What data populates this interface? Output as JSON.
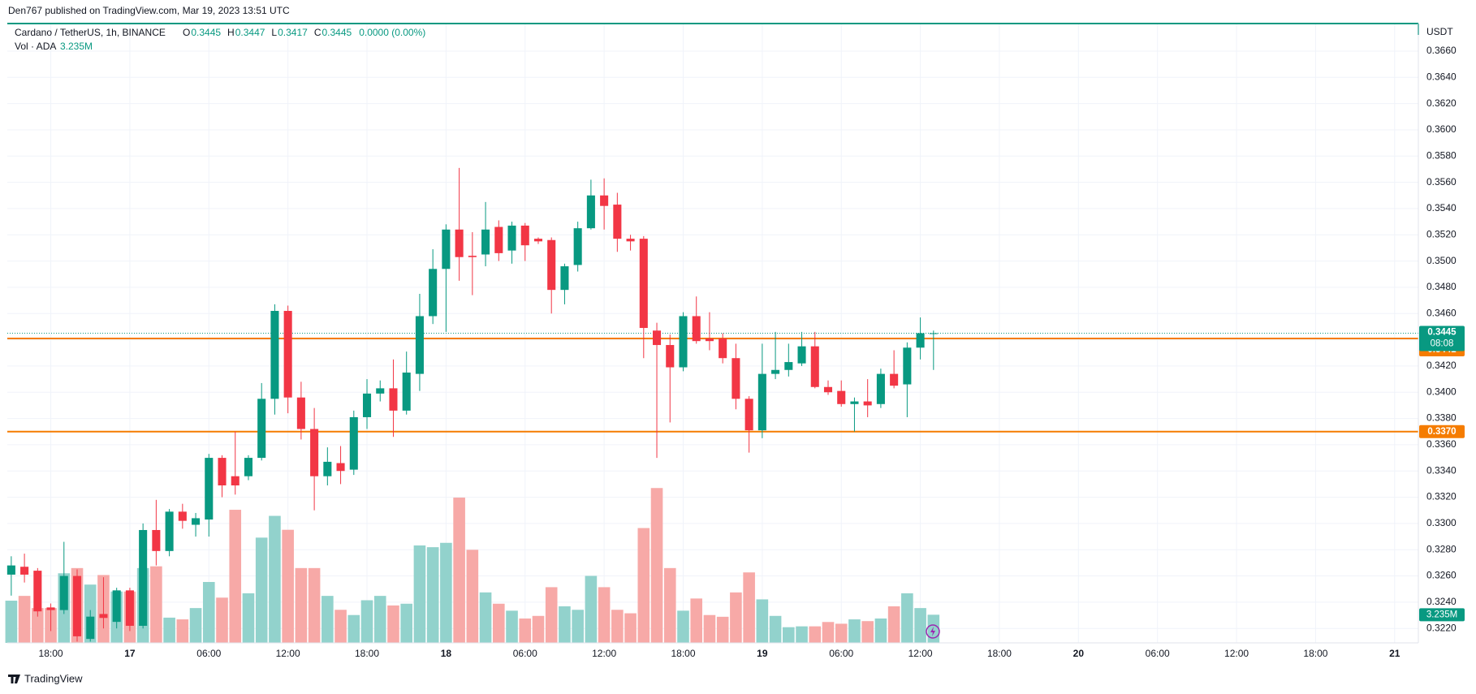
{
  "header": {
    "published": "Den767 published on TradingView.com, Mar 19, 2023 13:51 UTC",
    "brand": "TradingView"
  },
  "chart_data": {
    "type": "candlestick",
    "symbol": "Cardano / TetherUS, 1h, BINANCE",
    "ohlc_legend": [
      {
        "key": "O",
        "value": 0.3445
      },
      {
        "key": "H",
        "value": 0.3447
      },
      {
        "key": "L",
        "value": 0.3417
      },
      {
        "key": "C",
        "value": 0.3445
      },
      {
        "key": "",
        "value": "0.0000 (0.00%)"
      }
    ],
    "volume_legend": {
      "name": "Vol · ADA",
      "value": "3.235M"
    },
    "unit": "USDT",
    "up_color": "#089981",
    "down_color": "#f23645",
    "volume_up_color": "#92d2cc",
    "volume_down_color": "#f7a9a7",
    "grid": true,
    "open": [
      0.3261,
      0.3267,
      0.3264,
      0.3236,
      0.3234,
      0.326,
      0.3212,
      0.3231,
      0.3225,
      0.3249,
      0.3222,
      0.3295,
      0.3279,
      0.3309,
      0.3299,
      0.3303,
      0.335,
      0.3336,
      0.3336,
      0.335,
      0.3395,
      0.3462,
      0.3396,
      0.3372,
      0.3336,
      0.3346,
      0.3341,
      0.3381,
      0.3399,
      0.3403,
      0.3386,
      0.3414,
      0.3458,
      0.3494,
      0.3524,
      0.3504,
      0.3505,
      0.3526,
      0.3508,
      0.3527,
      0.3517,
      0.3516,
      0.3478,
      0.3497,
      0.3525,
      0.355,
      0.3543,
      0.3517,
      0.3517,
      0.3447,
      0.3436,
      0.3419,
      0.3458,
      0.3441,
      0.3441,
      0.3426,
      0.3395,
      0.3371,
      0.3414,
      0.3417,
      0.3422,
      0.3435,
      0.3404,
      0.3401,
      0.3391,
      0.3393,
      0.3391,
      0.3414,
      0.3406,
      0.3434,
      0.3445
    ],
    "high": [
      0.3275,
      0.3277,
      0.3266,
      0.3239,
      0.3286,
      0.3265,
      0.3234,
      0.3259,
      0.3251,
      0.3251,
      0.33,
      0.3318,
      0.3311,
      0.3315,
      0.3308,
      0.3353,
      0.3352,
      0.337,
      0.3352,
      0.3407,
      0.3467,
      0.3466,
      0.3408,
      0.3388,
      0.3358,
      0.3359,
      0.3386,
      0.341,
      0.3409,
      0.3425,
      0.3431,
      0.3475,
      0.3509,
      0.3528,
      0.3571,
      0.3522,
      0.3545,
      0.3531,
      0.353,
      0.3529,
      0.3518,
      0.3518,
      0.3498,
      0.353,
      0.3562,
      0.3563,
      0.3552,
      0.352,
      0.3519,
      0.3453,
      0.3444,
      0.3461,
      0.3473,
      0.3461,
      0.3445,
      0.3437,
      0.3397,
      0.3437,
      0.3446,
      0.3437,
      0.3446,
      0.3446,
      0.3409,
      0.3409,
      0.3396,
      0.341,
      0.3418,
      0.3432,
      0.3438,
      0.3457,
      0.3447
    ],
    "low": [
      0.3245,
      0.3255,
      0.3229,
      0.3218,
      0.3231,
      0.321,
      0.321,
      0.322,
      0.322,
      0.3218,
      0.322,
      0.3268,
      0.3275,
      0.3296,
      0.329,
      0.329,
      0.332,
      0.3322,
      0.3333,
      0.3348,
      0.3383,
      0.3384,
      0.3364,
      0.331,
      0.3329,
      0.333,
      0.3337,
      0.3372,
      0.3393,
      0.3366,
      0.3383,
      0.3401,
      0.3452,
      0.3446,
      0.3485,
      0.3474,
      0.3496,
      0.35,
      0.3498,
      0.35,
      0.3513,
      0.346,
      0.3467,
      0.3492,
      0.3524,
      0.3524,
      0.3507,
      0.3508,
      0.3426,
      0.335,
      0.3377,
      0.3416,
      0.3437,
      0.3432,
      0.3422,
      0.3387,
      0.3354,
      0.3365,
      0.341,
      0.3412,
      0.342,
      0.3403,
      0.3398,
      0.3389,
      0.337,
      0.3381,
      0.3388,
      0.3403,
      0.3381,
      0.3425,
      0.3417
    ],
    "close": [
      0.3268,
      0.3261,
      0.3233,
      0.3234,
      0.326,
      0.3214,
      0.3229,
      0.3228,
      0.3249,
      0.3222,
      0.3295,
      0.3279,
      0.3309,
      0.3302,
      0.3304,
      0.335,
      0.3329,
      0.3329,
      0.335,
      0.3395,
      0.3462,
      0.3396,
      0.3372,
      0.3336,
      0.3347,
      0.334,
      0.3381,
      0.3399,
      0.3403,
      0.3386,
      0.3415,
      0.3458,
      0.3494,
      0.3524,
      0.3503,
      0.3503,
      0.3524,
      0.3506,
      0.3527,
      0.3512,
      0.3515,
      0.3478,
      0.3496,
      0.3525,
      0.355,
      0.3542,
      0.3517,
      0.3515,
      0.3449,
      0.3436,
      0.3419,
      0.3458,
      0.3439,
      0.3439,
      0.3426,
      0.3395,
      0.3371,
      0.3414,
      0.3417,
      0.3423,
      0.3435,
      0.3404,
      0.34,
      0.3391,
      0.3393,
      0.339,
      0.3414,
      0.3405,
      0.3434,
      0.3445,
      0.3445
    ],
    "volume": {
      "values": [
        4.85,
        5.4,
        4.0,
        4.0,
        8.0,
        8.6,
        6.7,
        7.8,
        5.9,
        5.9,
        8.6,
        8.8,
        2.9,
        2.7,
        4.0,
        7.0,
        5.2,
        15.3,
        5.7,
        12.1,
        14.6,
        13.0,
        8.6,
        8.6,
        5.4,
        3.8,
        3.2,
        4.9,
        5.4,
        4.3,
        4.5,
        11.2,
        11.0,
        11.5,
        16.7,
        10.7,
        5.8,
        4.5,
        3.7,
        2.8,
        3.1,
        6.4,
        4.2,
        3.8,
        7.7,
        6.4,
        3.8,
        3.4,
        13.2,
        17.8,
        8.6,
        3.7,
        5.1,
        3.2,
        3.0,
        5.8,
        8.1,
        5.0,
        3.1,
        1.8,
        1.9,
        1.9,
        2.4,
        2.2,
        2.7,
        2.5,
        2.8,
        4.2,
        5.7,
        4.0,
        3.235
      ],
      "last_label": "3.235M"
    },
    "xlim": [
      -0.3,
      106.8
    ],
    "xticks": [
      {
        "value": 3,
        "label": "18:00"
      },
      {
        "value": 9,
        "label": "17"
      },
      {
        "value": 15,
        "label": "06:00"
      },
      {
        "value": 21,
        "label": "12:00"
      },
      {
        "value": 27,
        "label": "18:00"
      },
      {
        "value": 33,
        "label": "18"
      },
      {
        "value": 39,
        "label": "06:00"
      },
      {
        "value": 45,
        "label": "12:00"
      },
      {
        "value": 51,
        "label": "18:00"
      },
      {
        "value": 57,
        "label": "19"
      },
      {
        "value": 63,
        "label": "06:00"
      },
      {
        "value": 69,
        "label": "12:00"
      },
      {
        "value": 75,
        "label": "18:00"
      },
      {
        "value": 81,
        "label": "20"
      },
      {
        "value": 87,
        "label": "06:00"
      },
      {
        "value": 93,
        "label": "12:00"
      },
      {
        "value": 99,
        "label": "18:00"
      },
      {
        "value": 105,
        "label": "21"
      }
    ],
    "ylim": [
      0.3209,
      0.3681
    ],
    "yticks": [
      {
        "value": 0.322,
        "label": "0.3220"
      },
      {
        "value": 0.324,
        "label": "0.3240"
      },
      {
        "value": 0.326,
        "label": "0.3260"
      },
      {
        "value": 0.328,
        "label": "0.3280"
      },
      {
        "value": 0.33,
        "label": "0.3300"
      },
      {
        "value": 0.332,
        "label": "0.3320"
      },
      {
        "value": 0.334,
        "label": "0.3340"
      },
      {
        "value": 0.336,
        "label": "0.3360"
      },
      {
        "value": 0.338,
        "label": "0.3380"
      },
      {
        "value": 0.34,
        "label": "0.3400"
      },
      {
        "value": 0.342,
        "label": "0.3420"
      },
      {
        "value": 0.344,
        "label": "0.3440"
      },
      {
        "value": 0.346,
        "label": "0.3460"
      },
      {
        "value": 0.348,
        "label": "0.3480"
      },
      {
        "value": 0.35,
        "label": "0.3500"
      },
      {
        "value": 0.352,
        "label": "0.3520"
      },
      {
        "value": 0.354,
        "label": "0.3540"
      },
      {
        "value": 0.356,
        "label": "0.3560"
      },
      {
        "value": 0.358,
        "label": "0.3580"
      },
      {
        "value": 0.36,
        "label": "0.3600"
      },
      {
        "value": 0.362,
        "label": "0.3620"
      },
      {
        "value": 0.364,
        "label": "0.3640"
      },
      {
        "value": 0.366,
        "label": "0.3660"
      }
    ],
    "price_lines": [
      {
        "value": 0.3441,
        "label": "0.3441",
        "color": "#f57c00"
      },
      {
        "value": 0.337,
        "label": "0.3370",
        "color": "#f57c00"
      }
    ],
    "last_price": {
      "value": 0.3445,
      "countdown": "08:08"
    }
  }
}
